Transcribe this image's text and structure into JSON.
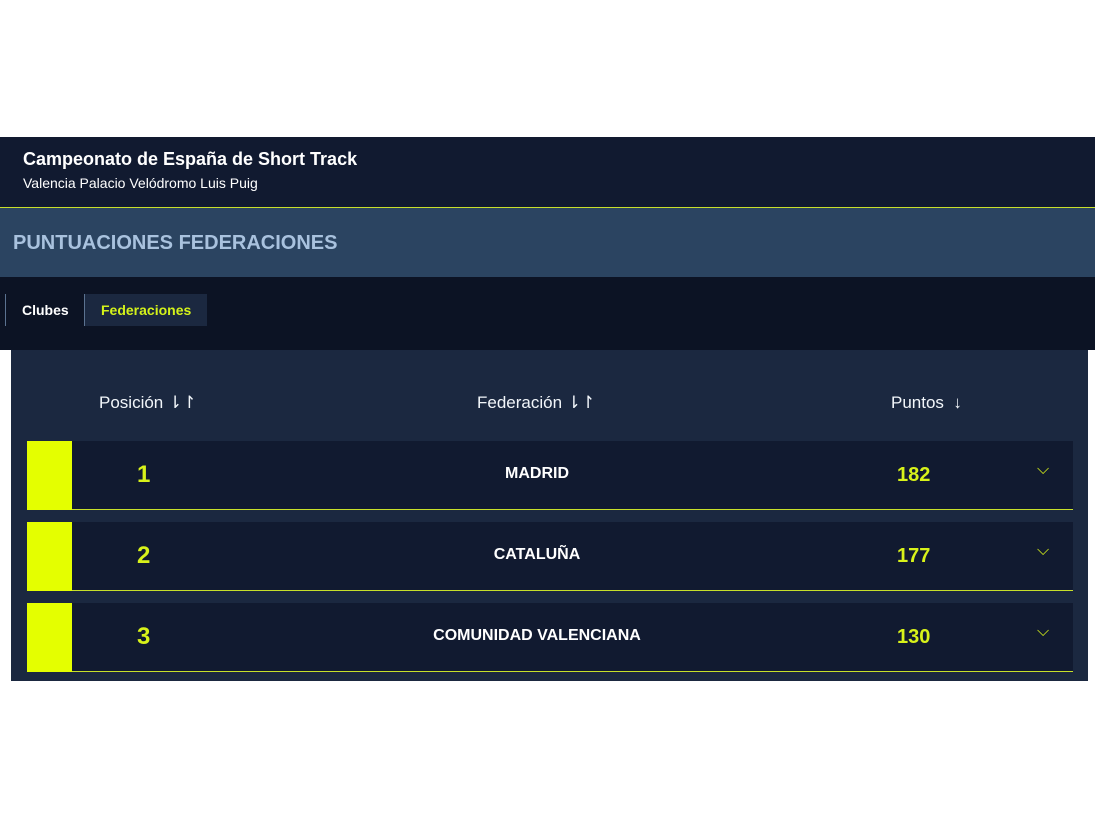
{
  "header": {
    "title": "Campeonato de España de Short Track",
    "subtitle": "Valencia Palacio Velódromo Luis Puig"
  },
  "banner": {
    "title": "PUNTUACIONES FEDERACIONES"
  },
  "tabs": [
    {
      "label": "Clubes",
      "active": false
    },
    {
      "label": "Federaciones",
      "active": true
    }
  ],
  "table": {
    "columns": [
      {
        "label": "Posición",
        "sort_icon": "⇂↾"
      },
      {
        "label": "Federación",
        "sort_icon": "⇂↾"
      },
      {
        "label": "Puntos",
        "sort_icon": "↓"
      }
    ],
    "rows": [
      {
        "position": "1",
        "federation": "MADRID",
        "points": "182"
      },
      {
        "position": "2",
        "federation": "CATALUÑA",
        "points": "177"
      },
      {
        "position": "3",
        "federation": "COMUNIDAD VALENCIANA",
        "points": "130"
      }
    ],
    "expand_icon": "⌵"
  },
  "colors": {
    "accent": "#e4ff00",
    "header_bg": "#111a30",
    "banner_bg": "#2b4461"
  }
}
